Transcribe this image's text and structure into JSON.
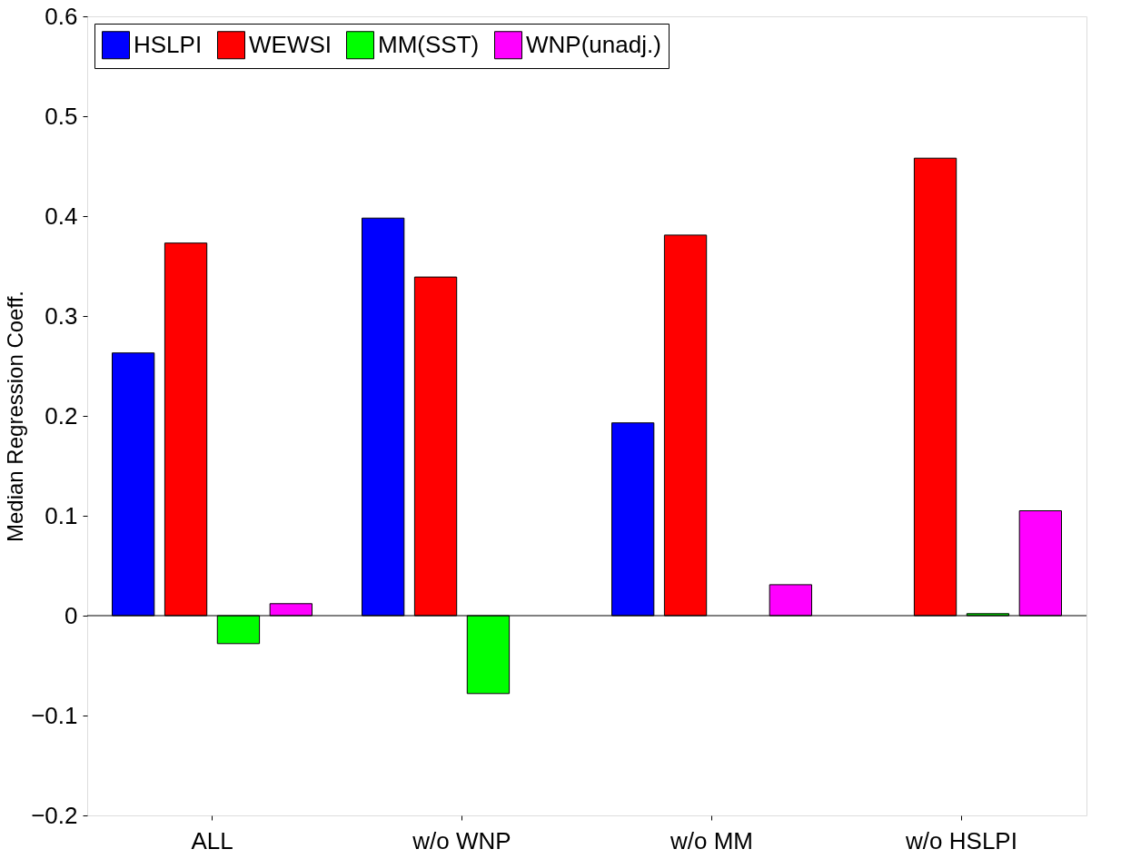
{
  "chart_data": {
    "type": "bar",
    "ylabel": "Median Regression Coeff.",
    "categories": [
      "ALL",
      "w/o WNP",
      "w/o MM",
      "w/o HSLPI"
    ],
    "series": [
      {
        "name": "HSLPI",
        "color": "#0000ff",
        "values": [
          0.263,
          0.398,
          0.193,
          null
        ]
      },
      {
        "name": "WEWSI",
        "color": "#ff0000",
        "values": [
          0.373,
          0.339,
          0.381,
          0.458
        ]
      },
      {
        "name": "MM(SST)",
        "color": "#00ff00",
        "values": [
          -0.028,
          -0.078,
          null,
          0.002
        ]
      },
      {
        "name": "WNP(unadj.)",
        "color": "#ff00ff",
        "values": [
          0.012,
          null,
          0.031,
          0.105
        ]
      }
    ],
    "ylim": [
      -0.2,
      0.6
    ],
    "yticks": [
      -0.2,
      -0.1,
      0,
      0.1,
      0.2,
      0.3,
      0.4,
      0.5,
      0.6
    ],
    "ref_lines": [
      {
        "axis": "y",
        "value": 0,
        "color": "#000000"
      }
    ],
    "grid": false,
    "legend": "top left"
  }
}
